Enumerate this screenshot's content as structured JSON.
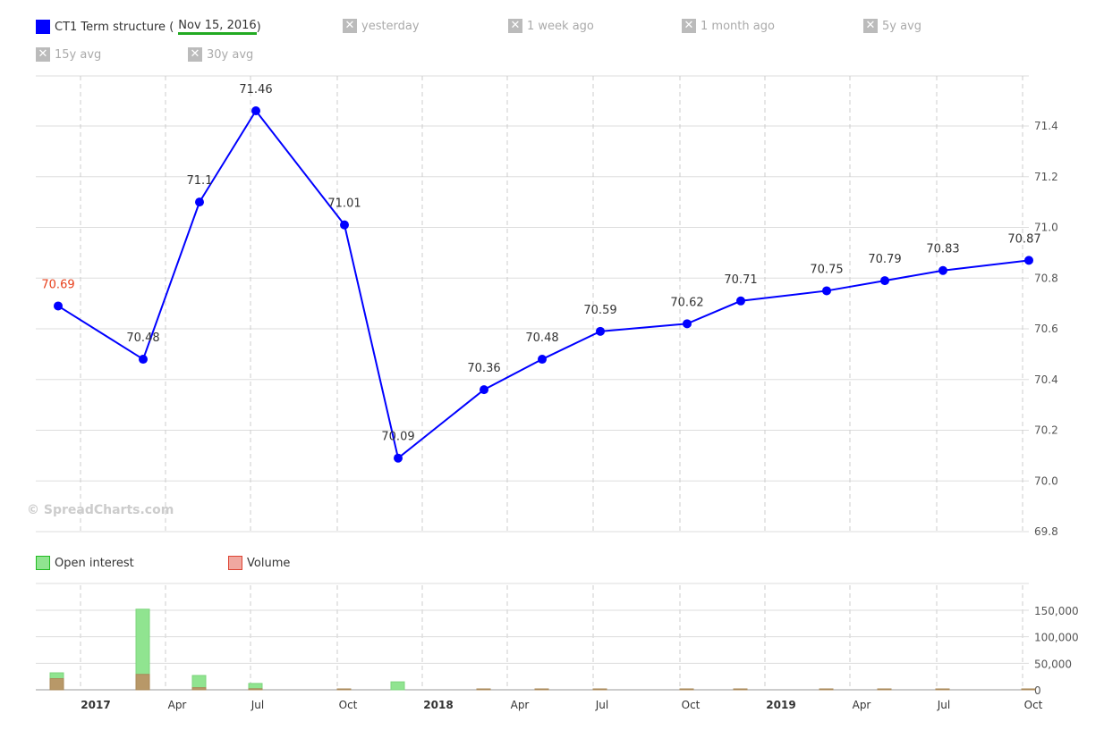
{
  "legend": {
    "main_prefix": "CT1 Term structure (",
    "main_date": "Nov 15, 2016",
    "main_suffix": ")",
    "main_color": "#0000ff",
    "disabled": [
      "yesterday",
      "1 week ago",
      "1 month ago",
      "5y avg",
      "15y avg",
      "30y avg"
    ],
    "oi_label": "Open interest",
    "vol_label": "Volume"
  },
  "watermark": "© SpreadCharts.com",
  "chart_data": [
    {
      "type": "line",
      "title": "CT1 Term structure",
      "ylim": [
        69.8,
        71.5
      ],
      "yticks": [
        "69.8",
        "70.0",
        "70.2",
        "70.4",
        "70.6",
        "70.8",
        "71.0",
        "71.2",
        "71.4"
      ],
      "values": [
        70.69,
        70.48,
        71.1,
        71.46,
        71.01,
        70.09,
        70.36,
        70.48,
        70.59,
        70.62,
        70.71,
        70.75,
        70.79,
        70.83,
        70.87
      ],
      "labels": [
        "70.69",
        "70.48",
        "71.1",
        "71.46",
        "71.01",
        "70.09",
        "70.36",
        "70.48",
        "70.59",
        "70.62",
        "70.71",
        "70.75",
        "70.79",
        "70.83",
        "70.87"
      ],
      "highlight_color": "#e8401c",
      "grid": true
    },
    {
      "type": "bar",
      "series": [
        {
          "name": "Open interest",
          "color": "#90e490",
          "values": [
            32000,
            152000,
            27000,
            12000,
            500,
            15000,
            300,
            300,
            300,
            300,
            300,
            300,
            300,
            300,
            300
          ]
        },
        {
          "name": "Volume",
          "color": "#b89868",
          "values": [
            21000,
            29000,
            4000,
            2000,
            300,
            0,
            300,
            300,
            300,
            300,
            300,
            300,
            300,
            300,
            300
          ]
        }
      ],
      "yticks": [
        "0",
        "50,000",
        "100,000",
        "150,000"
      ],
      "ylim": [
        0,
        165000
      ],
      "xticks": [
        "2017",
        "Apr",
        "Jul",
        "Oct",
        "2018",
        "Apr",
        "Jul",
        "Oct",
        "2019",
        "Apr",
        "Jul",
        "Oct"
      ]
    }
  ]
}
